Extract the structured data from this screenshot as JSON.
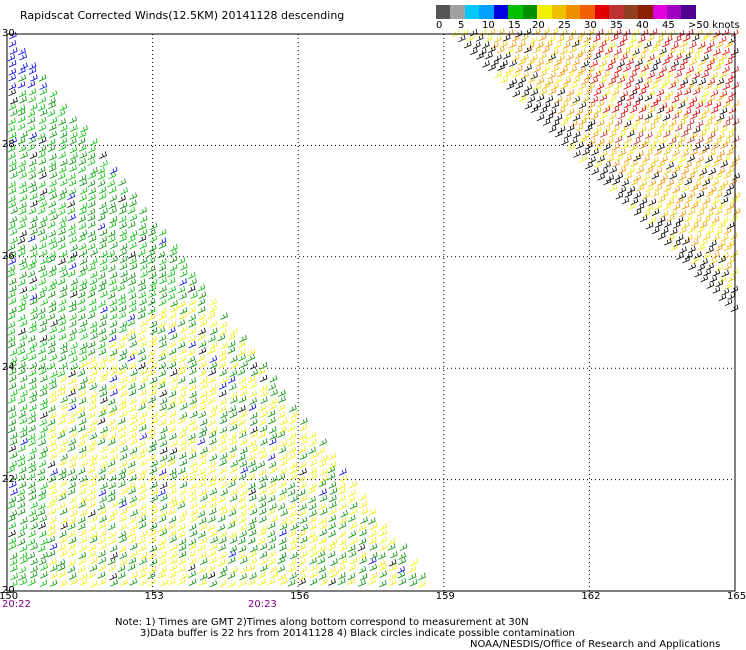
{
  "title": "Rapidscat Corrected Winds(12.5KM) 20141128 descending",
  "colorbar": {
    "colors": [
      "#555555",
      "#a0a0a0",
      "#00c8ff",
      "#00a0ff",
      "#0000e0",
      "#00c000",
      "#009000",
      "#f0f000",
      "#f0c000",
      "#f09000",
      "#f06000",
      "#e00000",
      "#c03030",
      "#904020",
      "#8a2000",
      "#e000e0",
      "#a000c0",
      "#500090"
    ],
    "labels": [
      "0",
      "5",
      "10",
      "15",
      "20",
      "25",
      "30",
      "35",
      "40",
      "45",
      ">50 knots"
    ]
  },
  "axes": {
    "lon_ticks": [
      "150",
      "153",
      "156",
      "159",
      "162",
      "165"
    ],
    "lat_ticks": [
      "30",
      "28",
      "26",
      "24",
      "22",
      "20"
    ],
    "lon_range": [
      150,
      165
    ],
    "lat_range": [
      20,
      30
    ]
  },
  "times": [
    "20:22",
    "20:23"
  ],
  "notes": {
    "line1": "Note: 1) Times are GMT 2)Times along bottom correspond to measurement at 30N",
    "line2": "3)Data buffer is 22 hrs from 20141128 4) Black circles indicate possible contamination",
    "line3": "NOAA/NESDIS/Office of Research and Applications"
  }
}
